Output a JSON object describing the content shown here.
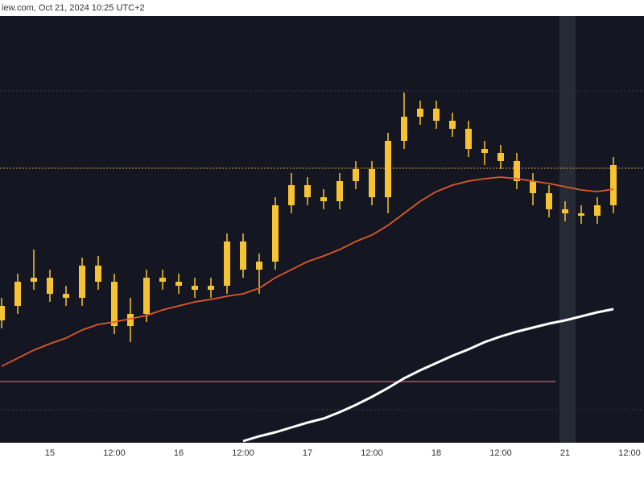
{
  "header": {
    "text": "iew.com, Oct 21, 2024 10:25 UTC+2"
  },
  "chart_data": {
    "type": "candlestick",
    "categories": [
      null,
      null,
      null,
      "15",
      null,
      null,
      null,
      "12:00",
      null,
      null,
      null,
      "16",
      null,
      null,
      null,
      "12:00",
      null,
      null,
      null,
      "17",
      null,
      null,
      null,
      "12:00",
      null,
      null,
      null,
      "18",
      null,
      null,
      null,
      "12:00",
      null,
      null,
      null,
      "21",
      null,
      null,
      null,
      "12:00"
    ],
    "color": "#f7c330",
    "open": [
      150,
      168,
      198,
      203,
      183,
      178,
      218,
      198,
      143,
      158,
      203,
      198,
      193,
      188,
      193,
      248,
      213,
      223,
      293,
      318,
      303,
      298,
      323,
      338,
      303,
      373,
      403,
      413,
      398,
      388,
      363,
      358,
      348,
      323,
      308,
      288,
      283,
      280,
      293,
      null
    ],
    "high": [
      178,
      208,
      238,
      213,
      193,
      228,
      230,
      208,
      178,
      213,
      213,
      208,
      203,
      203,
      258,
      258,
      233,
      303,
      333,
      328,
      313,
      333,
      348,
      348,
      383,
      433,
      423,
      423,
      408,
      398,
      373,
      368,
      358,
      333,
      318,
      298,
      293,
      303,
      353,
      null
    ],
    "low": [
      140,
      158,
      188,
      173,
      168,
      168,
      188,
      133,
      123,
      148,
      188,
      183,
      178,
      178,
      183,
      203,
      183,
      213,
      283,
      293,
      288,
      288,
      313,
      293,
      283,
      363,
      393,
      388,
      378,
      353,
      343,
      338,
      313,
      293,
      278,
      273,
      270,
      270,
      283,
      null
    ],
    "close": [
      168,
      198,
      203,
      183,
      178,
      218,
      198,
      143,
      158,
      203,
      198,
      193,
      188,
      193,
      248,
      213,
      223,
      293,
      318,
      303,
      298,
      323,
      338,
      303,
      373,
      403,
      413,
      398,
      388,
      363,
      358,
      348,
      323,
      308,
      288,
      283,
      280,
      293,
      343,
      null
    ],
    "series": [
      {
        "color": "#e0582a",
        "values": [
          93,
          103,
          113,
          121,
          128,
          138,
          145,
          148,
          152,
          156,
          163,
          168,
          173,
          176,
          180,
          183,
          190,
          203,
          213,
          223,
          230,
          238,
          248,
          256,
          268,
          283,
          298,
          310,
          318,
          323,
          326,
          328,
          326,
          323,
          320,
          316,
          312,
          310,
          313,
          null
        ]
      },
      {
        "color": "#ffffff",
        "values": [
          null,
          null,
          null,
          null,
          null,
          null,
          null,
          null,
          null,
          null,
          null,
          null,
          null,
          null,
          null,
          0,
          6,
          11,
          17,
          23,
          28,
          36,
          45,
          55,
          66,
          78,
          88,
          97,
          106,
          114,
          123,
          130,
          136,
          141,
          146,
          150,
          155,
          160,
          164,
          null
        ]
      }
    ],
    "ylim": [
      0,
      528
    ]
  }
}
